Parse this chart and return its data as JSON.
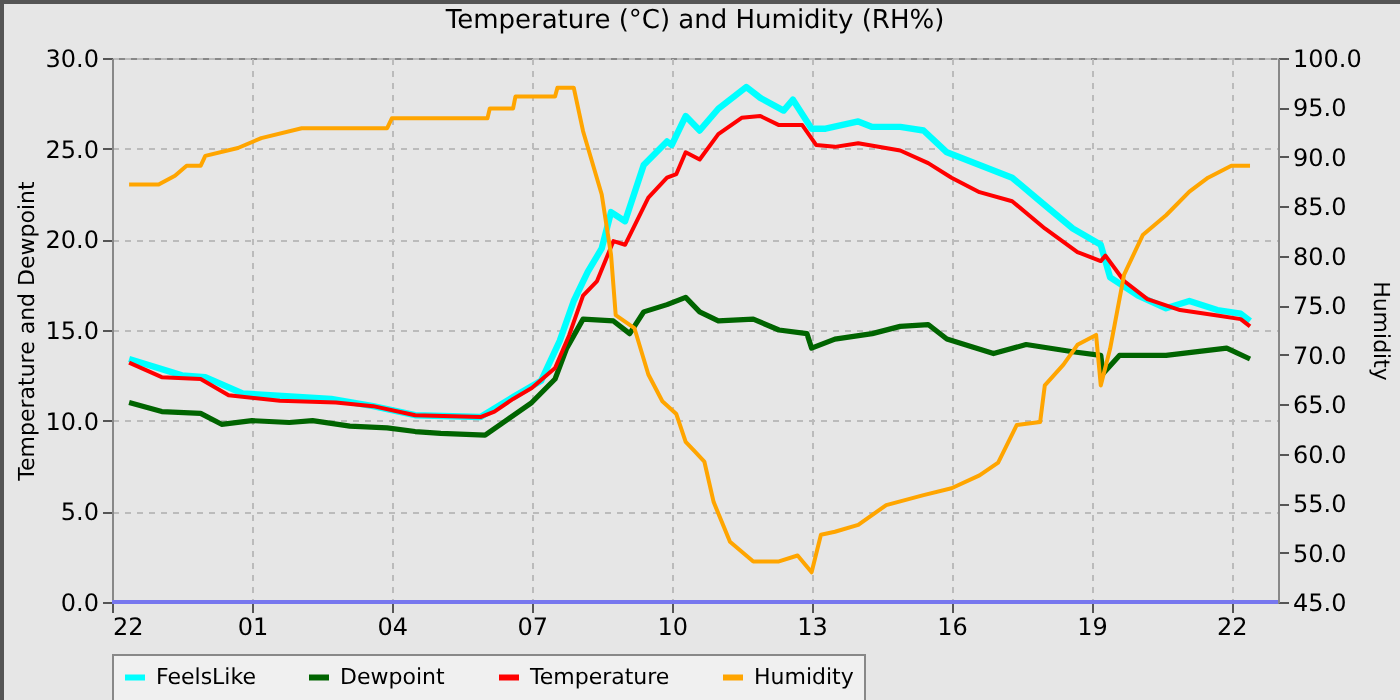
{
  "chart_data": {
    "type": "line",
    "title": "Temperature (°C) and Humidity (RH%)",
    "ylabel": "Temperature and Dewpoint",
    "y2label": "Humidity",
    "xlim": [
      "--01-01T22:00",
      "--01-02T23:00"
    ],
    "xticks": [
      {
        "value": "--01-01T22:00",
        "label": "22"
      },
      {
        "value": "--01-02T01:00",
        "label": "01"
      },
      {
        "value": "--01-02T04:00",
        "label": "04"
      },
      {
        "value": "--01-02T07:00",
        "label": "07"
      },
      {
        "value": "--01-02T10:00",
        "label": "10"
      },
      {
        "value": "--01-02T13:00",
        "label": "13"
      },
      {
        "value": "--01-02T16:00",
        "label": "16"
      },
      {
        "value": "--01-02T19:00",
        "label": "19"
      },
      {
        "value": "--01-02T22:00",
        "label": "22"
      }
    ],
    "ylim": [
      0,
      30
    ],
    "yticks": [
      {
        "value": 0,
        "label": "0.0"
      },
      {
        "value": 5,
        "label": "5.0"
      },
      {
        "value": 10,
        "label": "10.0"
      },
      {
        "value": 15,
        "label": "15.0"
      },
      {
        "value": 20,
        "label": "20.0"
      },
      {
        "value": 25,
        "label": "25.0"
      },
      {
        "value": 30,
        "label": "30.0"
      }
    ],
    "y2lim": [
      45,
      100
    ],
    "y2ticks": [
      {
        "value": 45,
        "label": "45.0"
      },
      {
        "value": 50,
        "label": "50.0"
      },
      {
        "value": 55,
        "label": "55.0"
      },
      {
        "value": 60,
        "label": "60.0"
      },
      {
        "value": 65,
        "label": "65.0"
      },
      {
        "value": 70,
        "label": "70.0"
      },
      {
        "value": 75,
        "label": "75.0"
      },
      {
        "value": 80,
        "label": "80.0"
      },
      {
        "value": 85,
        "label": "85.0"
      },
      {
        "value": 90,
        "label": "90.0"
      },
      {
        "value": 95,
        "label": "95.0"
      },
      {
        "value": 100,
        "label": "100.0"
      }
    ],
    "grid": true,
    "legend": "bottom",
    "ref_lines": [
      {
        "axis": "y",
        "value": 0,
        "label": null,
        "color": "#7777ee"
      }
    ],
    "series": [
      {
        "name": "FeelsLike",
        "color": "#00ffff",
        "x": [
          "--01-01T22:22",
          "--01-01T23:30",
          "--01-02T00:00",
          "--01-02T00:48",
          "--01-02T02:42",
          "--01-02T03:36",
          "--01-02T04:30",
          "--01-02T05:54",
          "--01-02T06:36",
          "--01-02T07:12",
          "--01-02T07:36",
          "--01-02T07:54",
          "--01-02T08:12",
          "--01-02T08:30",
          "--01-02T08:42",
          "--01-02T09:00",
          "--01-02T09:24",
          "--01-02T09:54",
          "--01-02T10:00",
          "--01-02T10:18",
          "--01-02T10:36",
          "--01-02T11:00",
          "--01-02T11:36",
          "--01-02T11:54",
          "--01-02T12:24",
          "--01-02T12:36",
          "--01-02T13:00",
          "--01-02T13:18",
          "--01-02T14:00",
          "--01-02T14:18",
          "--01-02T14:54",
          "--01-02T15:24",
          "--01-02T15:54",
          "--01-02T16:36",
          "--01-02T17:18",
          "--01-02T17:54",
          "--01-02T18:36",
          "--01-02T19:12",
          "--01-02T19:24",
          "--01-02T20:00",
          "--01-02T20:36",
          "--01-02T21:06",
          "--01-02T21:42",
          "--01-02T22:12",
          "--01-02T22:24"
        ],
        "values": [
          13.4,
          12.5,
          12.4,
          11.5,
          11.2,
          10.8,
          10.3,
          10.2,
          11.3,
          12.2,
          14.4,
          16.6,
          18.2,
          19.5,
          21.5,
          21.0,
          24.1,
          25.4,
          25.2,
          26.8,
          26.0,
          27.2,
          28.4,
          27.8,
          27.1,
          27.7,
          26.1,
          26.1,
          26.5,
          26.2,
          26.2,
          26.0,
          24.8,
          24.1,
          23.4,
          22.1,
          20.6,
          19.7,
          17.9,
          16.9,
          16.2,
          16.6,
          16.1,
          15.9,
          15.5
        ]
      },
      {
        "name": "Dewpoint",
        "color": "#006400",
        "x": [
          "--01-01T22:22",
          "--01-01T23:04",
          "--01-01T23:54",
          "--01-02T00:21",
          "--01-02T01:00",
          "--01-02T01:48",
          "--01-02T02:18",
          "--01-02T03:06",
          "--01-02T03:54",
          "--01-02T04:30",
          "--01-02T05:03",
          "--01-02T06:00",
          "--01-02T06:30",
          "--01-02T07:00",
          "--01-02T07:30",
          "--01-02T07:45",
          "--01-02T08:06",
          "--01-02T08:45",
          "--01-02T09:06",
          "--01-02T09:24",
          "--01-02T09:54",
          "--01-02T10:18",
          "--01-02T10:36",
          "--01-02T11:00",
          "--01-02T11:45",
          "--01-02T12:18",
          "--01-02T12:54",
          "--01-02T13:00",
          "--01-02T13:30",
          "--01-02T14:18",
          "--01-02T14:54",
          "--01-02T15:30",
          "--01-02T15:54",
          "--01-02T16:54",
          "--01-02T17:36",
          "--01-02T18:36",
          "--01-02T19:12",
          "--01-02T19:15",
          "--01-02T19:36",
          "--01-02T20:36",
          "--01-02T21:54",
          "--01-02T22:24"
        ],
        "values": [
          11.0,
          10.5,
          10.4,
          9.8,
          10.0,
          9.9,
          10.0,
          9.7,
          9.6,
          9.4,
          9.3,
          9.2,
          10.1,
          11.0,
          12.3,
          14.0,
          15.6,
          15.5,
          14.8,
          16.0,
          16.4,
          16.8,
          16.0,
          15.5,
          15.6,
          15.0,
          14.8,
          14.0,
          14.5,
          14.8,
          15.2,
          15.3,
          14.5,
          13.7,
          14.2,
          13.8,
          13.6,
          12.6,
          13.6,
          13.6,
          14.0,
          13.4
        ]
      },
      {
        "name": "Temperature",
        "color": "#ff0000",
        "x": [
          "--01-01T22:22",
          "--01-01T23:04",
          "--01-01T23:54",
          "--01-02T00:30",
          "--01-02T01:36",
          "--01-02T02:48",
          "--01-02T03:36",
          "--01-02T04:30",
          "--01-02T05:54",
          "--01-02T06:12",
          "--01-02T06:36",
          "--01-02T07:00",
          "--01-02T07:30",
          "--01-02T07:48",
          "--01-02T08:06",
          "--01-02T08:24",
          "--01-02T08:45",
          "--01-02T09:00",
          "--01-02T09:30",
          "--01-02T09:54",
          "--01-02T10:06",
          "--01-02T10:18",
          "--01-02T10:36",
          "--01-02T11:00",
          "--01-02T11:30",
          "--01-02T11:54",
          "--01-02T12:18",
          "--01-02T12:48",
          "--01-02T13:06",
          "--01-02T13:30",
          "--01-02T14:00",
          "--01-02T14:54",
          "--01-02T15:30",
          "--01-02T16:00",
          "--01-02T16:36",
          "--01-02T17:18",
          "--01-02T18:00",
          "--01-02T18:42",
          "--01-02T19:12",
          "--01-02T19:18",
          "--01-02T19:42",
          "--01-02T20:12",
          "--01-02T20:54",
          "--01-02T21:42",
          "--01-02T22:12",
          "--01-02T22:24"
        ],
        "values": [
          13.2,
          12.4,
          12.3,
          11.4,
          11.1,
          11.0,
          10.8,
          10.3,
          10.2,
          10.5,
          11.2,
          11.8,
          12.9,
          14.7,
          16.9,
          17.7,
          19.9,
          19.7,
          22.3,
          23.4,
          23.6,
          24.8,
          24.4,
          25.8,
          26.7,
          26.8,
          26.3,
          26.3,
          25.2,
          25.1,
          25.3,
          24.9,
          24.2,
          23.4,
          22.6,
          22.1,
          20.6,
          19.3,
          18.8,
          19.1,
          17.7,
          16.7,
          16.1,
          15.8,
          15.6,
          15.2
        ]
      },
      {
        "name": "Humidity",
        "color": "#ffa500",
        "axis": "y2",
        "x": [
          "--01-01T22:22",
          "--01-01T23:00",
          "--01-01T23:21",
          "--01-01T23:36",
          "--01-01T23:54",
          "--01-02T00:00",
          "--01-02T00:42",
          "--01-02T01:12",
          "--01-02T02:04",
          "--01-02T03:54",
          "--01-02T04:00",
          "--01-02T06:03",
          "--01-02T06:06",
          "--01-02T06:36",
          "--01-02T06:39",
          "--01-02T07:30",
          "--01-02T07:33",
          "--01-02T07:54",
          "--01-02T08:06",
          "--01-02T08:30",
          "--01-02T08:42",
          "--01-02T08:48",
          "--01-02T09:12",
          "--01-02T09:30",
          "--01-02T09:48",
          "--01-02T10:06",
          "--01-02T10:18",
          "--01-02T10:30",
          "--01-02T10:42",
          "--01-02T10:54",
          "--01-02T11:15",
          "--01-02T11:45",
          "--01-02T12:18",
          "--01-02T12:42",
          "--01-02T13:00",
          "--01-02T13:12",
          "--01-02T13:30",
          "--01-02T14:00",
          "--01-02T14:36",
          "--01-02T15:24",
          "--01-02T16:00",
          "--01-02T16:36",
          "--01-02T17:00",
          "--01-02T17:24",
          "--01-02T17:54",
          "--01-02T18:00",
          "--01-02T18:24",
          "--01-02T18:42",
          "--01-02T19:06",
          "--01-02T19:12",
          "--01-02T19:24",
          "--01-02T19:42",
          "--01-02T20:06",
          "--01-02T20:36",
          "--01-02T21:06",
          "--01-02T21:30",
          "--01-02T22:00",
          "--01-02T22:24"
        ],
        "values": [
          87.2,
          87.2,
          88.1,
          89.1,
          89.1,
          90.1,
          90.9,
          91.9,
          92.9,
          92.9,
          93.9,
          93.9,
          94.9,
          94.9,
          96.1,
          96.1,
          97.0,
          97.0,
          92.6,
          86.2,
          80.1,
          74.0,
          72.7,
          68.0,
          65.3,
          64.0,
          61.2,
          60.2,
          59.2,
          55.1,
          51.1,
          49.1,
          49.1,
          49.7,
          48.0,
          51.8,
          52.1,
          52.8,
          54.8,
          55.8,
          56.5,
          57.8,
          59.1,
          62.9,
          63.2,
          66.9,
          69.0,
          71.0,
          72.0,
          66.9,
          70.6,
          78.1,
          82.1,
          84.1,
          86.5,
          87.9,
          89.1,
          89.1
        ]
      }
    ]
  }
}
